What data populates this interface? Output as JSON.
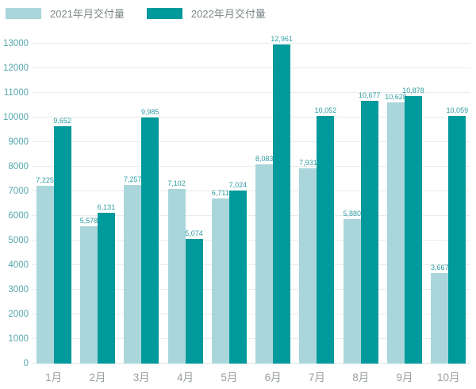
{
  "chart_data": {
    "type": "bar",
    "title": "",
    "xlabel": "",
    "ylabel": "",
    "categories": [
      "1月",
      "2月",
      "3月",
      "4月",
      "5月",
      "6月",
      "7月",
      "8月",
      "9月",
      "10月"
    ],
    "series": [
      {
        "name": "2021年月交付量",
        "color": "#aad6db",
        "values": [
          7225,
          5578,
          7257,
          7102,
          6711,
          8083,
          7931,
          5880,
          10628,
          3667
        ],
        "labels": [
          "7,225",
          "5,578",
          "7,257",
          "7,102",
          "6,711",
          "8,083",
          "7,931",
          "5,880",
          "10,628",
          "3,667"
        ]
      },
      {
        "name": "2022年月交付量",
        "color": "#00999c",
        "values": [
          9652,
          6131,
          9985,
          5074,
          7024,
          12961,
          10052,
          10677,
          10878,
          10059
        ],
        "labels": [
          "9,652",
          "6,131",
          "9,985",
          "5,074",
          "7,024",
          "12,961",
          "10,052",
          "10,677",
          "10,878",
          "10,059"
        ]
      }
    ],
    "ylim": [
      0,
      13000
    ],
    "ytick_interval": 1000,
    "ytick_labels": [
      "0",
      "1000",
      "2000",
      "3000",
      "4000",
      "5000",
      "6000",
      "7000",
      "8000",
      "9000",
      "10000",
      "11000",
      "12000",
      "13000"
    ],
    "grid": true,
    "legend_position": "top-left",
    "colors": {
      "value_label": "#2f9da3",
      "ytick": "#55a8ae",
      "xtick": "#9aa0a0",
      "gridline": "#e8ecec"
    }
  }
}
